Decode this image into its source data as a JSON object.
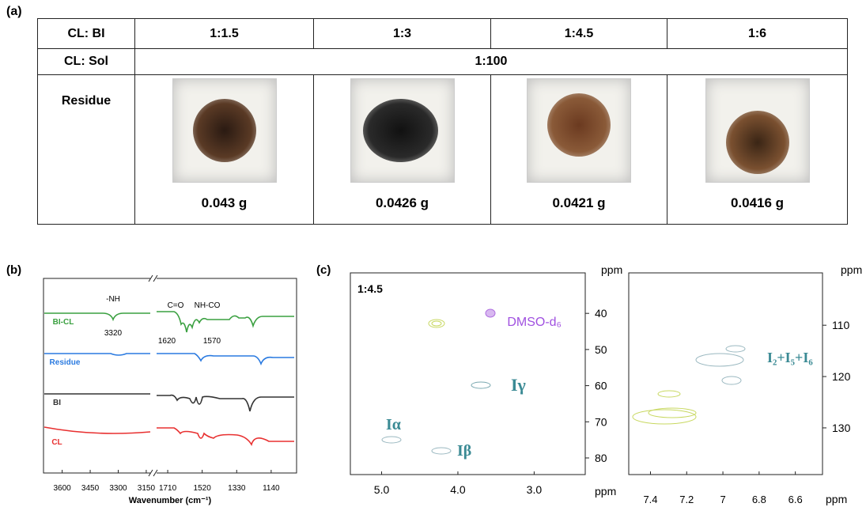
{
  "panel_a": {
    "label": "(a)",
    "table": {
      "rows": [
        [
          "CL: BI",
          "1:1.5",
          "1:3",
          "1:4.5",
          "1:6"
        ],
        [
          "CL: Sol",
          "1:100"
        ],
        [
          "Residue",
          "0.043 g",
          "0.0426 g",
          "0.0421 g",
          "0.0416 g"
        ]
      ]
    }
  },
  "panel_b": {
    "label": "(b)",
    "series_labels": [
      "BI-CL",
      "Residue",
      "BI",
      "CL"
    ],
    "annotations": [
      "-NH",
      "3320",
      "C=O",
      "NH-CO",
      "1620",
      "1570"
    ],
    "x_label": "Wavenumber (cm⁻¹)",
    "x_axis_left": {
      "xlim": [
        3700,
        3120
      ],
      "xticks": [
        3600,
        3450,
        3300,
        3150
      ]
    },
    "x_axis_right": {
      "xlim": [
        1780,
        1000
      ],
      "xticks": [
        1710,
        1520,
        1330,
        1140
      ]
    }
  },
  "panel_c": {
    "label": "(c)",
    "sample": "1:4.5",
    "left": {
      "xlim": [
        5.41,
        2.33
      ],
      "xticks": [
        {
          "value": 5,
          "label": "5.0"
        },
        {
          "value": 4,
          "label": "4.0"
        },
        {
          "value": 3,
          "label": "3.0"
        }
      ],
      "ylim": [
        28.8,
        84.6
      ],
      "yticks": [
        40,
        50,
        60,
        70,
        80
      ],
      "x_unit": "ppm",
      "y_unit": "ppm",
      "annotations": [
        "DMSO-d₆",
        "Iγ",
        "Iα",
        "Iβ"
      ]
    },
    "right": {
      "xlim": [
        7.52,
        6.45
      ],
      "xticks": [
        7.4,
        7.2,
        7.0,
        6.8,
        6.6
      ],
      "ylim": [
        99.8,
        139.1
      ],
      "yticks": [
        110,
        120,
        130
      ],
      "x_unit": "ppm",
      "y_unit": "ppm",
      "annotations": [
        "I₂+I₅+I₆"
      ]
    }
  }
}
